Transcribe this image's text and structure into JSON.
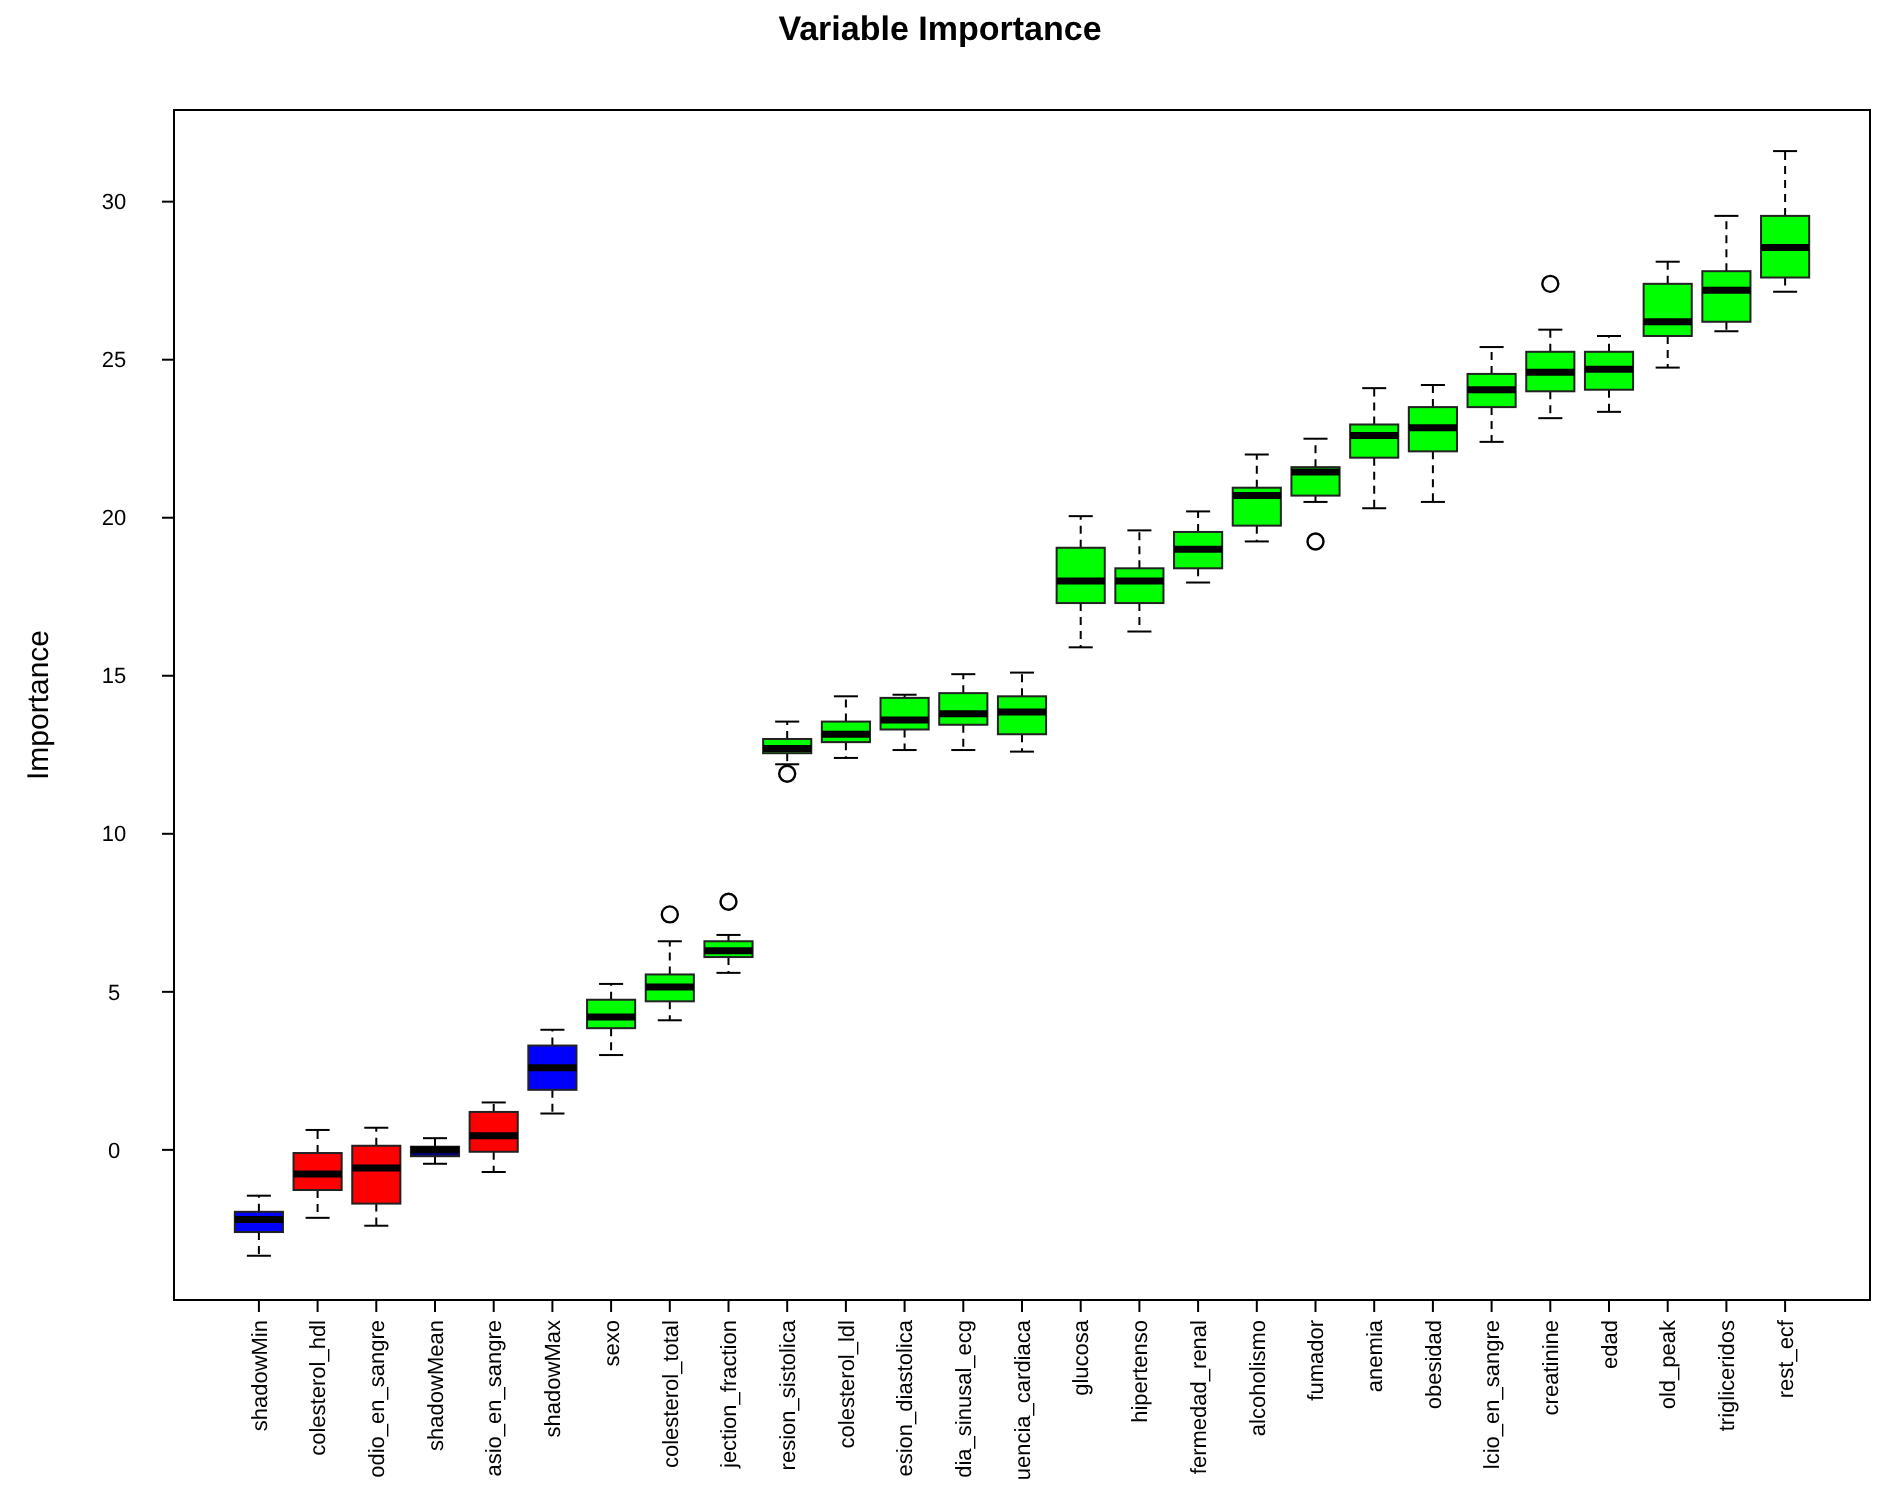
{
  "chart_data": {
    "type": "box",
    "title": "Variable Importance",
    "ylabel": "Importance",
    "categories": [
      "shadowMin",
      "colesterol_hdl",
      "odio_en_sangre",
      "shadowMean",
      "asio_en_sangre",
      "shadowMax",
      "sexo",
      "colesterol_total",
      "jection_fraction",
      "resion_sistolica",
      "colesterol_ldl",
      "esion_diastolica",
      "dia_sinusal_ecg",
      "uencia_cardiaca",
      "glucosa",
      "hipertenso",
      "fermedad_renal",
      "alcoholismo",
      "fumador",
      "anemia",
      "obesidad",
      "lcio_en_sangre",
      "creatinine",
      "edad",
      "old_peak",
      "trigliceridos",
      "rest_ecf"
    ],
    "colors": [
      "#0000ff",
      "#ff0000",
      "#ff0000",
      "#000080",
      "#ff0000",
      "#0000ff",
      "#00ff00",
      "#00ff00",
      "#00ff00",
      "#00ff00",
      "#00ff00",
      "#00ff00",
      "#00ff00",
      "#00ff00",
      "#00ff00",
      "#00ff00",
      "#00ff00",
      "#00ff00",
      "#00ff00",
      "#00ff00",
      "#00ff00",
      "#00ff00",
      "#00ff00",
      "#00ff00",
      "#00ff00",
      "#00ff00",
      "#00ff00"
    ],
    "boxes": [
      {
        "low": -3.35,
        "q1": -2.6,
        "median": -2.2,
        "q3": -1.96,
        "high": -1.45
      },
      {
        "low": -2.15,
        "q1": -1.27,
        "median": -0.76,
        "q3": -0.1,
        "high": 0.63
      },
      {
        "low": -2.4,
        "q1": -1.7,
        "median": -0.57,
        "q3": 0.13,
        "high": 0.7
      },
      {
        "low": -0.44,
        "q1": -0.2,
        "median": 0,
        "q3": 0.1,
        "high": 0.37
      },
      {
        "low": -0.7,
        "q1": -0.06,
        "median": 0.45,
        "q3": 1.2,
        "high": 1.5
      },
      {
        "low": 1.15,
        "q1": 1.9,
        "median": 2.6,
        "q3": 3.3,
        "high": 3.8
      },
      {
        "low": 3.0,
        "q1": 3.85,
        "median": 4.2,
        "q3": 4.75,
        "high": 5.25
      },
      {
        "low": 4.1,
        "q1": 4.7,
        "median": 5.15,
        "q3": 5.55,
        "high": 6.6,
        "outliers": [
          7.45
        ]
      },
      {
        "low": 5.6,
        "q1": 6.1,
        "median": 6.3,
        "q3": 6.6,
        "high": 6.8,
        "outliers": [
          7.85
        ]
      },
      {
        "low": 12.2,
        "q1": 12.55,
        "median": 12.7,
        "q3": 13.0,
        "high": 13.55,
        "outliers": [
          11.9
        ]
      },
      {
        "low": 12.4,
        "q1": 12.9,
        "median": 13.15,
        "q3": 13.55,
        "high": 14.35
      },
      {
        "low": 12.65,
        "q1": 13.3,
        "median": 13.6,
        "q3": 14.3,
        "high": 14.4
      },
      {
        "low": 12.65,
        "q1": 13.45,
        "median": 13.8,
        "q3": 14.45,
        "high": 15.05
      },
      {
        "low": 12.6,
        "q1": 13.15,
        "median": 13.85,
        "q3": 14.35,
        "high": 15.1
      },
      {
        "low": 15.9,
        "q1": 17.3,
        "median": 18.0,
        "q3": 19.05,
        "high": 20.05
      },
      {
        "low": 16.4,
        "q1": 17.3,
        "median": 18.0,
        "q3": 18.4,
        "high": 19.6
      },
      {
        "low": 17.95,
        "q1": 18.4,
        "median": 19.0,
        "q3": 19.55,
        "high": 20.2
      },
      {
        "low": 19.25,
        "q1": 19.75,
        "median": 20.7,
        "q3": 20.95,
        "high": 22.0
      },
      {
        "low": 20.5,
        "q1": 20.7,
        "median": 21.45,
        "q3": 21.6,
        "high": 22.5,
        "outliers": [
          19.25
        ]
      },
      {
        "low": 20.3,
        "q1": 21.9,
        "median": 22.6,
        "q3": 22.95,
        "high": 24.1
      },
      {
        "low": 20.5,
        "q1": 22.1,
        "median": 22.85,
        "q3": 23.5,
        "high": 24.2
      },
      {
        "low": 22.4,
        "q1": 23.5,
        "median": 24.05,
        "q3": 24.55,
        "high": 25.4
      },
      {
        "low": 23.15,
        "q1": 24.0,
        "median": 24.6,
        "q3": 25.25,
        "high": 25.95,
        "outliers": [
          27.4
        ]
      },
      {
        "low": 23.35,
        "q1": 24.05,
        "median": 24.7,
        "q3": 25.25,
        "high": 25.75
      },
      {
        "low": 24.75,
        "q1": 25.75,
        "median": 26.2,
        "q3": 27.4,
        "high": 28.1
      },
      {
        "low": 25.9,
        "q1": 26.2,
        "median": 27.2,
        "q3": 27.8,
        "high": 29.55
      },
      {
        "low": 27.15,
        "q1": 27.6,
        "median": 28.55,
        "q3": 29.55,
        "high": 31.6
      }
    ],
    "ylim": [
      -4.75,
      32.9
    ],
    "yticks": [
      0,
      5,
      10,
      15,
      20,
      25,
      30
    ],
    "grid": false
  }
}
